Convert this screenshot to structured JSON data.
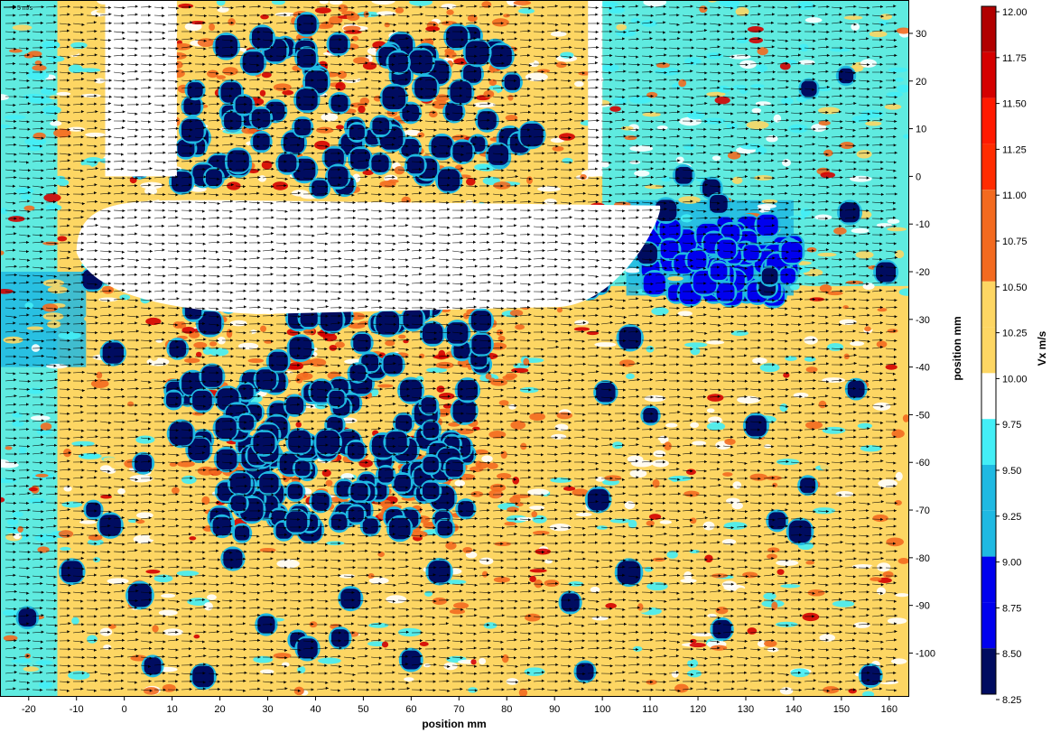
{
  "chart_data": {
    "type": "heatmap",
    "subtype": "piv-velocity-field-with-vectors",
    "xlabel": "position mm",
    "ylabel": "position mm",
    "colorbar_label": "Vx m/s",
    "scale_arrow_label": "5 m/s",
    "xlim": [
      -26,
      164
    ],
    "ylim": [
      -109,
      37
    ],
    "x_ticks": [
      -20,
      -10,
      0,
      10,
      20,
      30,
      40,
      50,
      60,
      70,
      80,
      90,
      100,
      110,
      120,
      130,
      140,
      150,
      160
    ],
    "y_ticks": [
      30,
      20,
      10,
      0,
      -10,
      -20,
      -30,
      -40,
      -50,
      -60,
      -70,
      -80,
      -90,
      -100
    ],
    "colorbar_ticks": [
      "12.00",
      "11.75",
      "11.50",
      "11.25",
      "11.00",
      "10.75",
      "10.50",
      "10.25",
      "10.00",
      "9.75",
      "9.50",
      "9.25",
      "9.00",
      "8.75",
      "8.50",
      "8.25"
    ],
    "color_levels": [
      {
        "min": 11.75,
        "max": 12.0,
        "color": "#b10000"
      },
      {
        "min": 11.5,
        "max": 11.75,
        "color": "#d40000"
      },
      {
        "min": 11.25,
        "max": 11.5,
        "color": "#ff1a00"
      },
      {
        "min": 11.0,
        "max": 11.25,
        "color": "#ff2c00"
      },
      {
        "min": 10.75,
        "max": 11.0,
        "color": "#f36a1f"
      },
      {
        "min": 10.5,
        "max": 10.75,
        "color": "#f36a1f"
      },
      {
        "min": 10.25,
        "max": 10.5,
        "color": "#fdd663"
      },
      {
        "min": 10.0,
        "max": 10.25,
        "color": "#fdd663"
      },
      {
        "min": 9.75,
        "max": 10.0,
        "color": "#ffffff"
      },
      {
        "min": 9.5,
        "max": 9.75,
        "color": "#43eef6"
      },
      {
        "min": 9.25,
        "max": 9.5,
        "color": "#1fb9e2"
      },
      {
        "min": 9.0,
        "max": 9.25,
        "color": "#1fb9e2"
      },
      {
        "min": 8.75,
        "max": 9.0,
        "color": "#0000ee"
      },
      {
        "min": 8.5,
        "max": 8.75,
        "color": "#0000ee"
      },
      {
        "min": 8.0,
        "max": 8.5,
        "color": "#000c60"
      }
    ],
    "background_value": 10.25,
    "masked_regions": [
      {
        "name": "upper-left-strut",
        "x": [
          -4,
          11
        ],
        "y": [
          37,
          0
        ]
      },
      {
        "name": "upper-right-strut",
        "x": [
          97,
          100
        ],
        "y": [
          37,
          0
        ]
      },
      {
        "name": "airfoil-body",
        "x": [
          -10,
          112
        ],
        "y": [
          -5,
          -27
        ]
      }
    ],
    "vortex_clusters": [
      {
        "x": [
          11,
          82
        ],
        "y": [
          30,
          -2
        ],
        "value": 8.25
      },
      {
        "x": [
          10,
          75
        ],
        "y": [
          -25,
          -60
        ],
        "value": 8.25
      },
      {
        "x": [
          20,
          70
        ],
        "y": [
          -55,
          -75
        ],
        "value": 8.25
      },
      {
        "x": [
          110,
          140
        ],
        "y": [
          -10,
          -25
        ],
        "value": 8.75
      }
    ],
    "colors": {
      "cold_region": "#43eef6",
      "mid_cold": "#1fb9e2",
      "vortex_core": "#000c60",
      "hot_band": "#f36a1f",
      "background_warm": "#fdd663"
    }
  }
}
